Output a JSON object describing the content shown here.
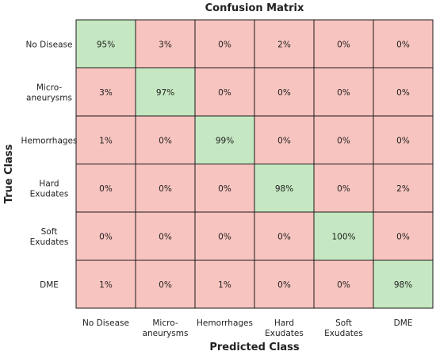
{
  "chart_data": {
    "type": "heatmap",
    "title": "Confusion Matrix",
    "xlabel": "Predicted Class",
    "ylabel": "True Class",
    "row_labels": [
      [
        "No Disease"
      ],
      [
        "Micro-",
        "aneurysms"
      ],
      [
        "Hemorrhages"
      ],
      [
        "Hard",
        "Exudates"
      ],
      [
        "Soft",
        "Exudates"
      ],
      [
        "DME"
      ]
    ],
    "col_labels": [
      [
        "No Disease"
      ],
      [
        "Micro-",
        "aneurysms"
      ],
      [
        "Hemorrhages"
      ],
      [
        "Hard",
        "Exudates"
      ],
      [
        "Soft",
        "Exudates"
      ],
      [
        "DME"
      ]
    ],
    "values": [
      [
        95,
        3,
        0,
        2,
        0,
        0
      ],
      [
        3,
        97,
        0,
        0,
        0,
        0
      ],
      [
        1,
        0,
        99,
        0,
        0,
        0
      ],
      [
        0,
        0,
        0,
        98,
        0,
        2
      ],
      [
        0,
        0,
        0,
        0,
        100,
        0
      ],
      [
        1,
        0,
        1,
        0,
        0,
        98
      ]
    ],
    "value_suffix": "%",
    "colors": {
      "diagonal": "#c5e8c2",
      "off_diagonal": "#f8c4c0",
      "grid": "#1a1a1a"
    }
  }
}
